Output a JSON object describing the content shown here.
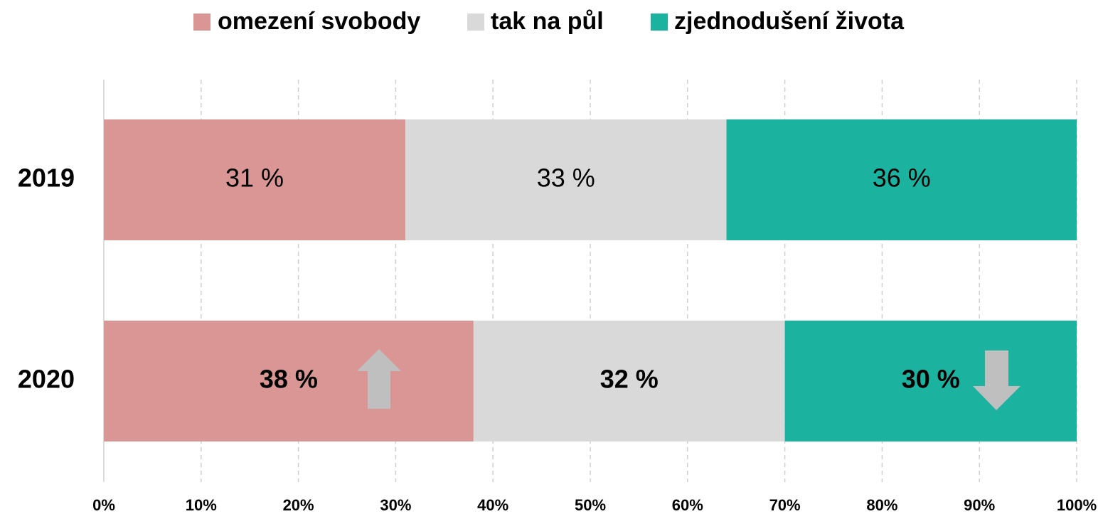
{
  "chart_data": {
    "type": "stacked_bar_horizontal",
    "categories": [
      "2019",
      "2020"
    ],
    "series": [
      {
        "name": "omezení svobody",
        "color": "#d99694",
        "values": [
          31,
          38
        ],
        "value_labels": [
          "31 %",
          "38 %"
        ]
      },
      {
        "name": "tak na půl",
        "color": "#d9d9d9",
        "values": [
          33,
          32
        ],
        "value_labels": [
          "33 %",
          "32 %"
        ]
      },
      {
        "name": "zjednodušení života",
        "color": "#1bb3a0",
        "values": [
          36,
          30
        ],
        "value_labels": [
          "36 %",
          "30 %"
        ]
      }
    ],
    "xlim": [
      0,
      100
    ],
    "xticks": [
      {
        "value": 0,
        "label": "0%"
      },
      {
        "value": 10,
        "label": "10%"
      },
      {
        "value": 20,
        "label": "20%"
      },
      {
        "value": 30,
        "label": "30%"
      },
      {
        "value": 40,
        "label": "40%"
      },
      {
        "value": 50,
        "label": "50%"
      },
      {
        "value": 60,
        "label": "60%"
      },
      {
        "value": 70,
        "label": "70%"
      },
      {
        "value": 80,
        "label": "80%"
      },
      {
        "value": 90,
        "label": "90%"
      },
      {
        "value": 100,
        "label": "100%"
      }
    ],
    "grid": true,
    "legend": "top"
  }
}
